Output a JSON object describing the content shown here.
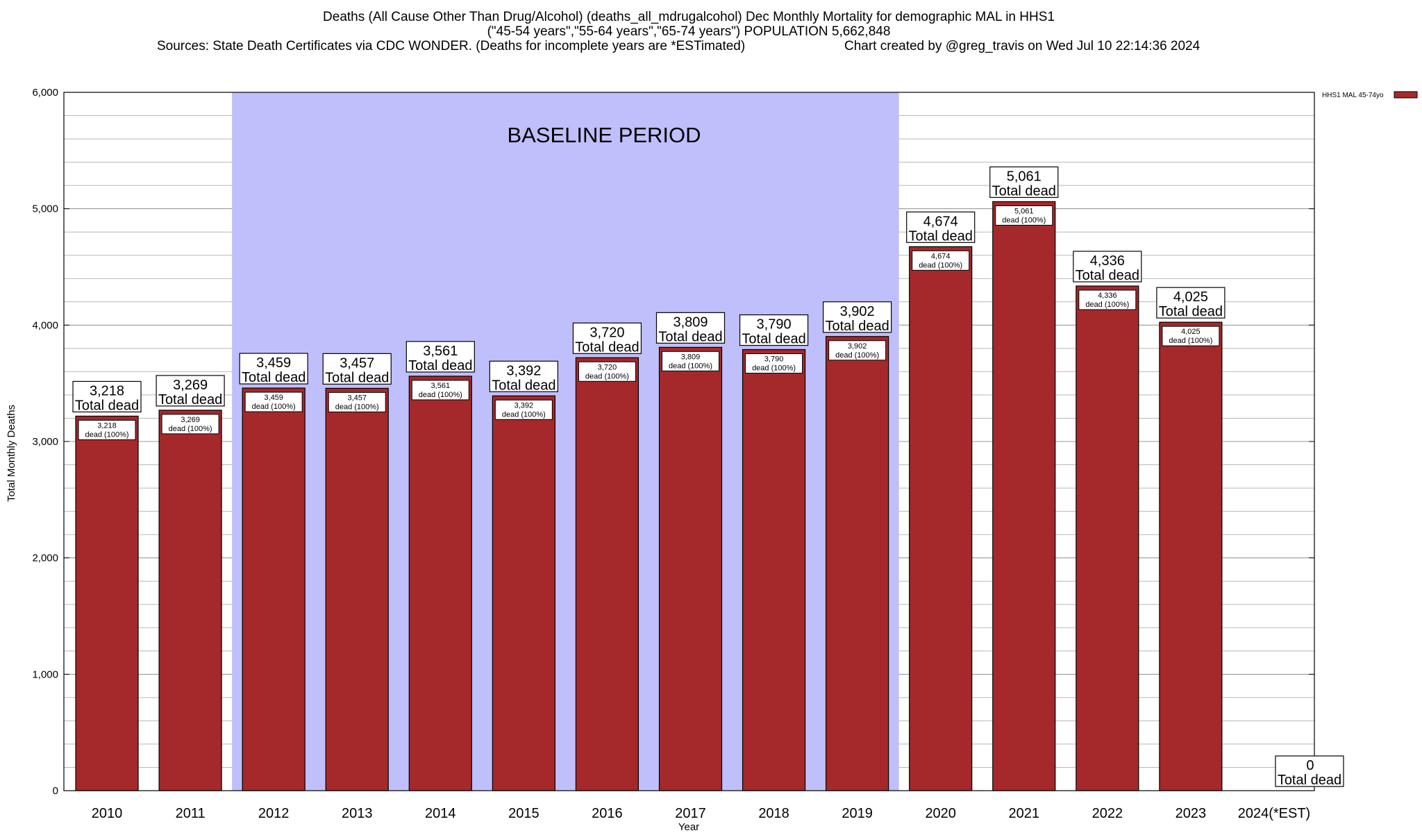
{
  "header": {
    "line1": "Deaths (All Cause Other Than Drug/Alcohol) (deaths_all_mdrugalcohol) Dec Monthly Mortality for demographic MAL in HHS1",
    "line2": "(\"45-54 years\",\"55-64 years\",\"65-74 years\") POPULATION 5,662,848",
    "line3_left": "Sources: State Death Certificates via CDC WONDER. (Deaths for incomplete years are *ESTimated)",
    "line3_right": "Chart created by @greg_travis on Wed Jul 10 22:14:36 2024"
  },
  "legend": {
    "label": "HHS1 MAL 45-74yo",
    "color": "#a5292a"
  },
  "baseline": {
    "label": "BASELINE PERIOD",
    "color": "#bfbffb",
    "start": "2012",
    "end": "2019"
  },
  "colors": {
    "bar": "#a5292a",
    "grid": "#b8b8b8"
  },
  "chart_data": {
    "type": "bar",
    "xlabel": "Year",
    "ylabel": "Total Monthly Deaths",
    "ylim": [
      0,
      6000
    ],
    "yticks": [
      0,
      1000,
      2000,
      3000,
      4000,
      5000,
      6000
    ],
    "ytick_labels": [
      "0",
      "1,000",
      "2,000",
      "3,000",
      "4,000",
      "5,000",
      "6,000"
    ],
    "grid": true,
    "legend_position": "top-right",
    "categories": [
      "2010",
      "2011",
      "2012",
      "2013",
      "2014",
      "2015",
      "2016",
      "2017",
      "2018",
      "2019",
      "2020",
      "2021",
      "2022",
      "2023",
      "2024(*EST)"
    ],
    "series": [
      {
        "name": "HHS1 MAL 45-74yo",
        "values": [
          3218,
          3269,
          3459,
          3457,
          3561,
          3392,
          3720,
          3809,
          3790,
          3902,
          4674,
          5061,
          4336,
          4025,
          0
        ]
      }
    ],
    "total_labels": [
      "3,218",
      "3,269",
      "3,459",
      "3,457",
      "3,561",
      "3,392",
      "3,720",
      "3,809",
      "3,790",
      "3,902",
      "4,674",
      "5,061",
      "4,336",
      "4,025",
      "0"
    ],
    "total_caption": "Total dead",
    "inner_labels": [
      "3,218",
      "3,269",
      "3,459",
      "3,457",
      "3,561",
      "3,392",
      "3,720",
      "3,809",
      "3,790",
      "3,902",
      "4,674",
      "5,061",
      "4,336",
      "4,025",
      ""
    ],
    "inner_caption": "dead (100%)"
  }
}
